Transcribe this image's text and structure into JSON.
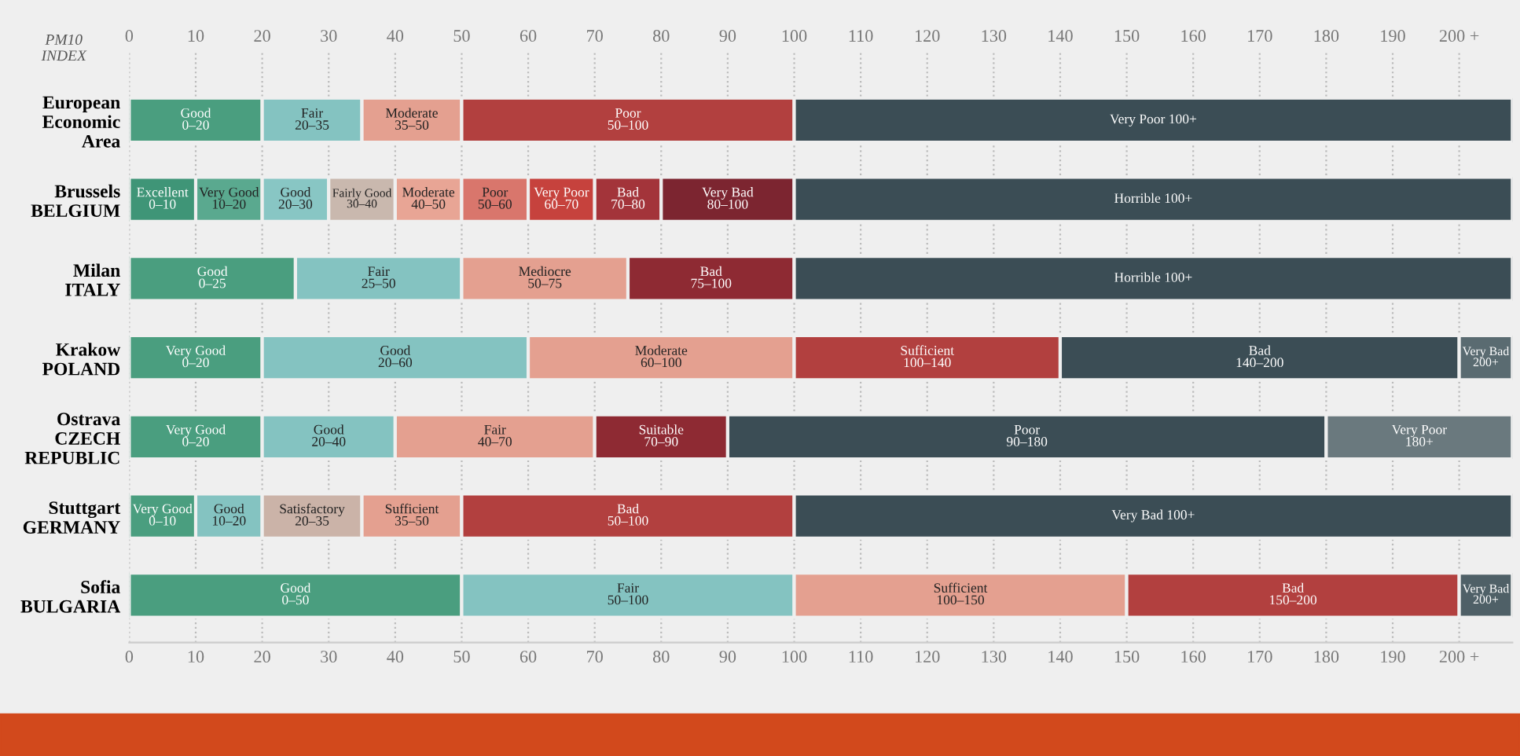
{
  "chart_data": {
    "type": "bar",
    "orientation": "horizontal",
    "stacked": true,
    "annotations": [
      "PM10\nINDEX"
    ],
    "categories": [
      "European\nEconomic\nArea",
      "Brussels\nBELGIUM",
      "Milan\nITALY",
      "Krakow\nPOLAND",
      "Ostrava\nCZECH\nREPUBLIC",
      "Stuttgart\nGERMANY",
      "Sofia\nBULGARIA"
    ],
    "series": [
      {
        "values": [
          20,
          10,
          25,
          20,
          20,
          10,
          50
        ],
        "colors": [
          "#4a9e7f",
          "#3f9577",
          "#4a9e7f",
          "#4a9e7f",
          "#4a9e7f",
          "#4a9e7f",
          "#4a9e7f"
        ],
        "value_labels": [
          "Good\n0–20",
          "Excellent\n0–10",
          "Good\n0–25",
          "Very Good\n0–20",
          "Very Good\n0–20",
          "Very Good\n0–10",
          "Good\n0–50"
        ]
      },
      {
        "values": [
          15,
          10,
          25,
          40,
          20,
          10,
          50
        ],
        "colors": [
          "#84c3c1",
          "#5aa98f",
          "#84c3c1",
          "#84c3c1",
          "#84c3c1",
          "#84c3c1",
          "#84c3c1"
        ],
        "value_labels": [
          "Fair\n20–35",
          "Very Good\n10–20",
          "Fair\n25–50",
          "Good\n20–60",
          "Good\n20–40",
          "Good\n10–20",
          "Fair\n50–100"
        ]
      },
      {
        "values": [
          15,
          10,
          25,
          40,
          30,
          15,
          50
        ],
        "colors": [
          "#e4a090",
          "#88c6c4",
          "#e4a090",
          "#e4a090",
          "#e4a090",
          "#cbb3a8",
          "#e4a090"
        ],
        "value_labels": [
          "Moderate\n35–50",
          "Good\n20–30",
          "Mediocre\n50–75",
          "Moderate\n60–100",
          "Fair\n40–70",
          "Satisfactory\n20–35",
          "Sufficient\n100–150"
        ]
      },
      {
        "values": [
          50,
          10,
          25,
          40,
          20,
          15,
          50
        ],
        "colors": [
          "#b2403f",
          "#c9b8ae",
          "#8e2a33",
          "#b2403f",
          "#8e2a33",
          "#e4a090",
          "#b2403f"
        ],
        "value_labels": [
          "Poor\n50–100",
          "Fairly Good\n30–40",
          "Bad\n75–100",
          "Sufficient\n100–140",
          "Suitable\n70–90",
          "Sufficient\n35–50",
          "Bad\n150–200"
        ]
      },
      {
        "values": [
          108,
          10,
          108,
          60,
          90,
          50,
          8
        ],
        "colors": [
          "#3b4d55",
          "#e8a595",
          "#3b4d55",
          "#3b4d55",
          "#3b4d55",
          "#b2403f",
          "#4f6067"
        ],
        "value_labels": [
          "Very Poor 100+",
          "Moderate\n40–50",
          "Horrible 100+",
          "Bad\n140–200",
          "Poor\n90–180",
          "Bad\n50–100",
          "Very Bad\n200+"
        ]
      },
      {
        "values": [
          null,
          10,
          null,
          8,
          28,
          108,
          null
        ],
        "colors": [
          null,
          "#d9766c",
          null,
          "#5a6b71",
          "#6a797e",
          "#3b4d55",
          null
        ],
        "value_labels": [
          null,
          "Poor\n50–60",
          null,
          "Very Bad\n200+",
          "Very Poor\n180+",
          "Very Bad 100+",
          null
        ]
      },
      {
        "values": [
          null,
          10,
          null,
          null,
          null,
          null,
          null
        ],
        "colors": [
          null,
          "#c6423d",
          null,
          null,
          null,
          null,
          null
        ],
        "value_labels": [
          null,
          "Very Poor\n60–70",
          null,
          null,
          null,
          null,
          null
        ]
      },
      {
        "values": [
          null,
          10,
          null,
          null,
          null,
          null,
          null
        ],
        "colors": [
          null,
          "#a3343a",
          null,
          null,
          null,
          null,
          null
        ],
        "value_labels": [
          null,
          "Bad\n70–80",
          null,
          null,
          null,
          null,
          null
        ]
      },
      {
        "values": [
          null,
          20,
          null,
          null,
          null,
          null,
          null
        ],
        "colors": [
          null,
          "#7c2530",
          null,
          null,
          null,
          null,
          null
        ],
        "value_labels": [
          null,
          "Very Bad\n80–100",
          null,
          null,
          null,
          null,
          null
        ]
      },
      {
        "values": [
          null,
          108,
          null,
          null,
          null,
          null,
          null
        ],
        "colors": [
          null,
          "#3b4d55",
          null,
          null,
          null,
          null,
          null
        ],
        "value_labels": [
          null,
          "Horrible 100+",
          null,
          null,
          null,
          null,
          null
        ]
      }
    ],
    "xlim": [
      0,
      208
    ],
    "xticks": [
      0,
      10,
      20,
      30,
      40,
      50,
      60,
      70,
      80,
      90,
      100,
      110,
      120,
      130,
      140,
      150,
      160,
      170,
      180,
      190,
      {
        "value": 200,
        "label": "200 +"
      }
    ],
    "x2lim": [
      0,
      208
    ],
    "x2ticks": [
      0,
      10,
      20,
      30,
      40,
      50,
      60,
      70,
      80,
      90,
      100,
      110,
      120,
      130,
      140,
      150,
      160,
      170,
      180,
      190,
      {
        "value": 200,
        "label": "200 +"
      }
    ],
    "grid": "x"
  }
}
